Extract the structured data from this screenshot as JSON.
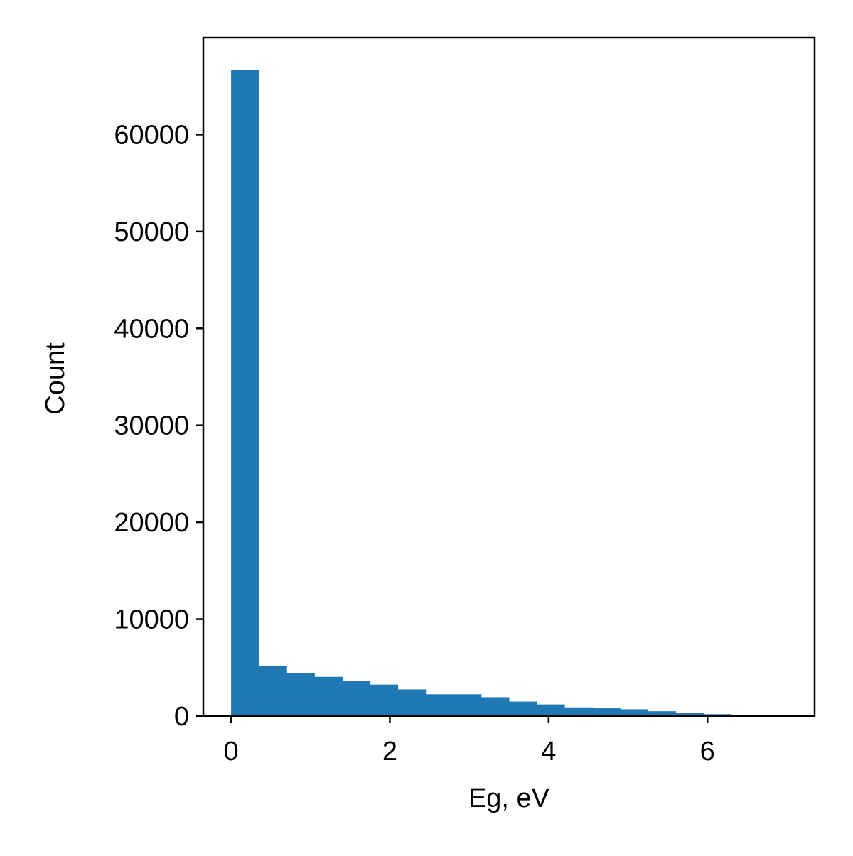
{
  "chart_data": {
    "type": "bar",
    "subtype": "histogram",
    "xlabel": "Eg, eV",
    "ylabel": "Count",
    "title": "",
    "xlim": [
      -0.35,
      7.35
    ],
    "ylim": [
      0,
      70000
    ],
    "xticks": [
      0,
      2,
      4,
      6
    ],
    "yticks": [
      0,
      10000,
      20000,
      30000,
      40000,
      50000,
      60000
    ],
    "grid": false,
    "legend": "none",
    "bar_color": "#1f77b4",
    "bin_edges": [
      0.0,
      0.35,
      0.7,
      1.05,
      1.4,
      1.75,
      2.1,
      2.45,
      2.8,
      3.15,
      3.5,
      3.85,
      4.2,
      4.55,
      4.9,
      5.25,
      5.6,
      5.95,
      6.3,
      6.65,
      7.0
    ],
    "values": [
      66700,
      5150,
      4450,
      4050,
      3650,
      3250,
      2750,
      2250,
      2250,
      1950,
      1500,
      1200,
      900,
      800,
      700,
      500,
      350,
      200,
      120,
      60
    ]
  }
}
